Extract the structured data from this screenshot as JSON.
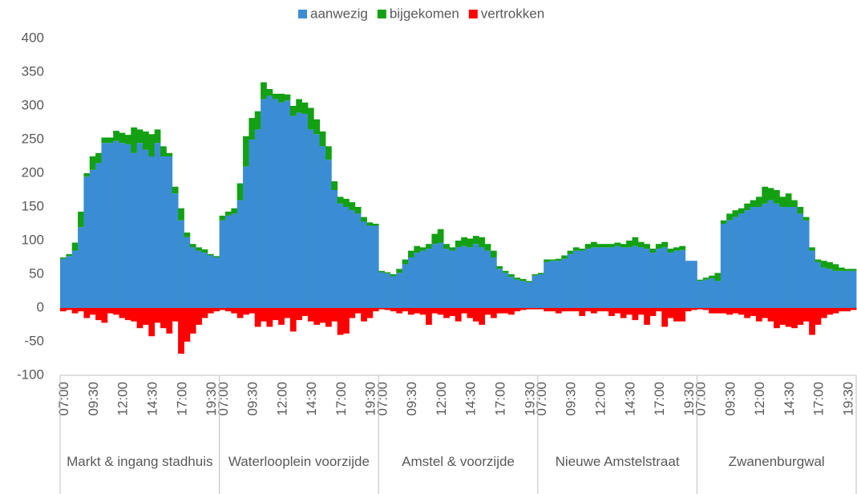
{
  "chart_data": {
    "type": "stacked-bar",
    "categories": [
      "07:00",
      null,
      null,
      null,
      null,
      "09:30",
      null,
      null,
      null,
      null,
      "12:00",
      null,
      null,
      null,
      null,
      "14:30",
      null,
      null,
      null,
      null,
      "17:00",
      null,
      null,
      null,
      null,
      "19:30",
      null,
      "07:00",
      null,
      null,
      null,
      null,
      "09:30",
      null,
      null,
      null,
      null,
      "12:00",
      null,
      null,
      null,
      null,
      "14:30",
      null,
      null,
      null,
      null,
      "17:00",
      null,
      null,
      null,
      null,
      "19:30",
      null,
      "07:00",
      null,
      null,
      null,
      null,
      "09:30",
      null,
      null,
      null,
      null,
      "12:00",
      null,
      null,
      null,
      null,
      "14:30",
      null,
      null,
      null,
      null,
      "17:00",
      null,
      null,
      null,
      null,
      "19:30",
      null,
      "07:00",
      null,
      null,
      null,
      null,
      "09:30",
      null,
      null,
      null,
      null,
      "12:00",
      null,
      null,
      null,
      null,
      "14:30",
      null,
      null,
      null,
      null,
      "17:00",
      null,
      null,
      null,
      null,
      "19:30",
      null,
      "07:00",
      null,
      null,
      null,
      null,
      "09:30",
      null,
      null,
      null,
      null,
      "12:00",
      null,
      null,
      null,
      null,
      "14:30",
      null,
      null,
      null,
      null,
      "17:00",
      null,
      null,
      null,
      null,
      "19:30",
      null
    ],
    "groups": [
      "Markt & ingang stadhuis",
      "Waterlooplein voorzijde",
      "Amstel & voorzijde",
      "Nieuwe Amstelstraat",
      "Zwanenburgwal"
    ],
    "series": [
      {
        "name": "aanwezig",
        "color": "#3b8dd3",
        "values": [
          73,
          77,
          85,
          120,
          195,
          205,
          215,
          245,
          245,
          248,
          245,
          243,
          230,
          245,
          235,
          225,
          245,
          225,
          225,
          170,
          130,
          105,
          90,
          85,
          82,
          78,
          75,
          130,
          137,
          140,
          160,
          210,
          250,
          265,
          310,
          315,
          310,
          305,
          308,
          285,
          290,
          288,
          265,
          258,
          240,
          220,
          175,
          155,
          150,
          145,
          140,
          128,
          122,
          122,
          53,
          51,
          47,
          52,
          65,
          75,
          82,
          85,
          88,
          95,
          97,
          88,
          85,
          90,
          92,
          90,
          95,
          90,
          85,
          75,
          58,
          52,
          46,
          42,
          40,
          38,
          48,
          50,
          68,
          70,
          70,
          73,
          80,
          85,
          85,
          88,
          90,
          90,
          90,
          90,
          92,
          90,
          90,
          92,
          90,
          88,
          82,
          88,
          90,
          82,
          85,
          86,
          70,
          70,
          40,
          42,
          44,
          40,
          125,
          130,
          135,
          140,
          145,
          150,
          150,
          155,
          160,
          155,
          150,
          150,
          150,
          140,
          130,
          85,
          68,
          60,
          58,
          55,
          55,
          55,
          55
        ]
      },
      {
        "name": "bijgekomen",
        "color": "#13a013",
        "values": [
          2,
          3,
          12,
          23,
          5,
          20,
          15,
          8,
          8,
          15,
          15,
          14,
          38,
          20,
          27,
          33,
          20,
          15,
          5,
          10,
          18,
          7,
          5,
          5,
          5,
          2,
          2,
          7,
          6,
          8,
          25,
          45,
          32,
          27,
          25,
          10,
          8,
          13,
          9,
          15,
          20,
          17,
          32,
          22,
          22,
          20,
          13,
          10,
          12,
          12,
          10,
          7,
          5,
          3,
          2,
          2,
          3,
          6,
          7,
          10,
          10,
          5,
          7,
          15,
          20,
          7,
          5,
          10,
          13,
          13,
          12,
          15,
          10,
          10,
          4,
          3,
          4,
          3,
          3,
          2,
          2,
          2,
          4,
          2,
          3,
          5,
          5,
          5,
          3,
          7,
          8,
          5,
          5,
          5,
          5,
          5,
          10,
          13,
          8,
          7,
          6,
          7,
          8,
          6,
          5,
          6,
          0,
          0,
          2,
          3,
          4,
          12,
          5,
          10,
          10,
          8,
          10,
          10,
          15,
          25,
          18,
          20,
          15,
          20,
          10,
          10,
          5,
          5,
          4,
          10,
          10,
          10,
          5,
          3,
          3
        ]
      },
      {
        "name": "vertrokken",
        "color": "#ff0000",
        "values": [
          -5,
          -3,
          -8,
          -5,
          -15,
          -10,
          -18,
          -22,
          -8,
          -10,
          -15,
          -18,
          -20,
          -30,
          -25,
          -42,
          -22,
          -30,
          -38,
          -20,
          -68,
          -50,
          -38,
          -25,
          -15,
          -8,
          -5,
          -3,
          -5,
          -8,
          -15,
          -10,
          -8,
          -28,
          -20,
          -28,
          -18,
          -25,
          -15,
          -35,
          -18,
          -12,
          -20,
          -25,
          -22,
          -28,
          -20,
          -40,
          -38,
          -15,
          -8,
          -20,
          -15,
          -5,
          -2,
          -3,
          -5,
          -8,
          -5,
          -10,
          -8,
          -10,
          -25,
          -8,
          -10,
          -15,
          -12,
          -20,
          -8,
          -15,
          -20,
          -25,
          -10,
          -15,
          -8,
          -8,
          -10,
          -5,
          -3,
          -2,
          -2,
          -2,
          -5,
          -5,
          -8,
          -5,
          -5,
          -5,
          -12,
          -5,
          -8,
          -5,
          -5,
          -12,
          -8,
          -15,
          -10,
          -18,
          -10,
          -25,
          -12,
          -5,
          -28,
          -15,
          -20,
          -20,
          -5,
          -3,
          -2,
          -3,
          -8,
          -8,
          -8,
          -10,
          -8,
          -10,
          -15,
          -12,
          -20,
          -15,
          -20,
          -30,
          -25,
          -28,
          -30,
          -25,
          -20,
          -40,
          -25,
          -15,
          -10,
          -8,
          -5,
          -5,
          -3
        ]
      }
    ],
    "ylim": [
      -100,
      400
    ],
    "yticks": [
      -100,
      -50,
      0,
      50,
      100,
      150,
      200,
      250,
      300,
      350,
      400
    ],
    "legend": "top",
    "grid": false
  }
}
